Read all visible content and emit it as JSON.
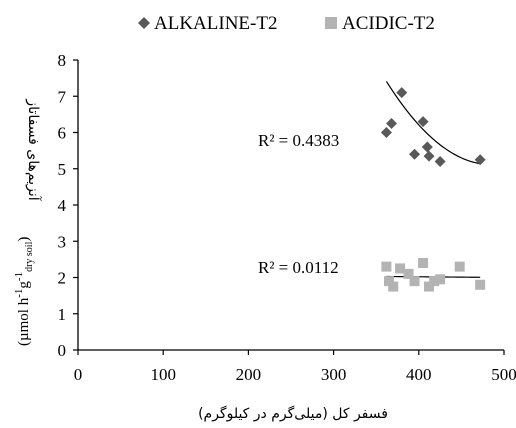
{
  "chart_data": {
    "type": "scatter",
    "xlim": [
      0,
      500
    ],
    "ylim": [
      0,
      8
    ],
    "x_ticks": [
      "0",
      "100",
      "200",
      "300",
      "400",
      "500"
    ],
    "y_ticks": [
      "0",
      "1",
      "2",
      "3",
      "4",
      "5",
      "6",
      "7",
      "8"
    ],
    "xlabel": "فسفر کل (میلی‌گرم در کیلوگرم)",
    "ylabel_persian": "آنزیم‌های فسفاتاز",
    "ylabel_units": "(µmol h-1g-1dry soil)",
    "ylabel_units_parts": {
      "open": "(µmol h",
      "sup1": "-1",
      "g": "g",
      "sup2": "-1",
      "sub": "dry soil",
      "close": ")"
    },
    "grid": false,
    "legend_position": "top",
    "series": [
      {
        "name": "ALKALINE-T2",
        "marker": "diamond",
        "color": "#595959",
        "points": [
          [
            362,
            6.0
          ],
          [
            368,
            6.25
          ],
          [
            380,
            7.1
          ],
          [
            395,
            5.4
          ],
          [
            405,
            6.3
          ],
          [
            410,
            5.6
          ],
          [
            412,
            5.35
          ],
          [
            425,
            5.2
          ],
          [
            472,
            5.25
          ]
        ],
        "trend": {
          "type": "poly2",
          "coef": [
            40.85,
            -0.1474,
            0.000152
          ],
          "x_range": [
            362,
            472
          ]
        },
        "r2_label": "R² = 0.4383"
      },
      {
        "name": "ACIDIC-T2",
        "marker": "square",
        "color": "#b3b3b3",
        "points": [
          [
            362,
            2.3
          ],
          [
            365,
            1.9
          ],
          [
            370,
            1.75
          ],
          [
            378,
            2.25
          ],
          [
            388,
            2.1
          ],
          [
            395,
            1.9
          ],
          [
            405,
            2.4
          ],
          [
            412,
            1.75
          ],
          [
            418,
            1.9
          ],
          [
            425,
            1.95
          ],
          [
            448,
            2.3
          ],
          [
            472,
            1.8
          ]
        ],
        "trend": {
          "type": "linear",
          "coef": [
            2.1,
            -0.0002
          ],
          "x_range": [
            362,
            472
          ]
        },
        "r2_label": "R² = 0.0112"
      }
    ]
  }
}
